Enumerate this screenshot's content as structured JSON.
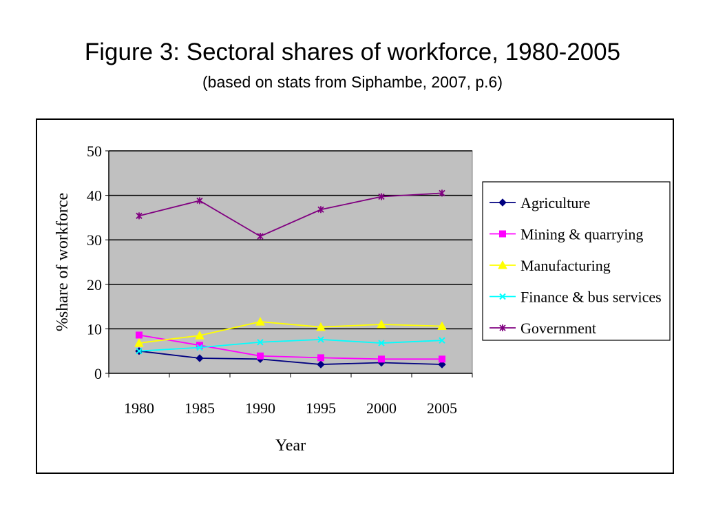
{
  "title": "Figure 3: Sectoral shares of workforce, 1980-2005",
  "subtitle": "(based on stats from Siphambe, 2007, p.6)",
  "chart_data": {
    "type": "line",
    "xlabel": "Year",
    "ylabel": "%share of workforce",
    "x": [
      "1980",
      "1985",
      "1990",
      "1995",
      "2000",
      "2005"
    ],
    "y_ticks": [
      "0",
      "10",
      "20",
      "30",
      "40",
      "50"
    ],
    "ylim": [
      0,
      50
    ],
    "grid": true,
    "legend_position": "right",
    "series": [
      {
        "name": "Agriculture",
        "values": [
          5.0,
          3.4,
          3.2,
          2.0,
          2.4,
          2.0
        ],
        "color": "#000080",
        "marker": "diamond"
      },
      {
        "name": "Mining & quarrying",
        "values": [
          8.6,
          6.3,
          3.9,
          3.5,
          3.2,
          3.2
        ],
        "color": "#ff00ff",
        "marker": "square"
      },
      {
        "name": "Manufacturing",
        "values": [
          6.8,
          8.5,
          11.6,
          10.4,
          11.0,
          10.6
        ],
        "color": "#ffff00",
        "marker": "triangle"
      },
      {
        "name": "Finance & bus services",
        "values": [
          5.0,
          5.8,
          7.0,
          7.6,
          6.8,
          7.4
        ],
        "color": "#00ffff",
        "marker": "x"
      },
      {
        "name": "Government",
        "values": [
          35.4,
          38.8,
          30.8,
          36.8,
          39.7,
          40.5
        ],
        "color": "#800080",
        "marker": "star"
      }
    ]
  }
}
